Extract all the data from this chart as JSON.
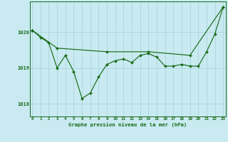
{
  "title": "Graphe pression niveau de la mer (hPa)",
  "bg_color": "#c8eaf0",
  "grid_color": "#b0d8e0",
  "line_color": "#1a6b1a",
  "series1_x": [
    0,
    1,
    2,
    3,
    4,
    5,
    6,
    7,
    8,
    9,
    10,
    11,
    12,
    13,
    14,
    15,
    16,
    17,
    18,
    19,
    20,
    21,
    22,
    23
  ],
  "series1_y": [
    1020.05,
    1019.85,
    1019.7,
    1019.0,
    1019.35,
    1018.9,
    1018.15,
    1018.3,
    1018.75,
    1019.1,
    1019.2,
    1019.25,
    1019.15,
    1019.35,
    1019.4,
    1019.3,
    1019.05,
    1019.05,
    1019.1,
    1019.05,
    1019.05,
    1019.45,
    1019.95,
    1020.7
  ],
  "series2_x": [
    0,
    3,
    9,
    14,
    19,
    23
  ],
  "series2_y": [
    1020.05,
    1019.55,
    1019.45,
    1019.45,
    1019.35,
    1020.7
  ],
  "ylim": [
    1017.65,
    1020.85
  ],
  "yticks": [
    1018,
    1019,
    1020
  ],
  "xlim": [
    -0.3,
    23.3
  ],
  "x_labels": [
    "0",
    "1",
    "2",
    "3",
    "4",
    "5",
    "6",
    "7",
    "8",
    "9",
    "10",
    "11",
    "12",
    "13",
    "14",
    "15",
    "16",
    "17",
    "18",
    "19",
    "20",
    "21",
    "22",
    "23"
  ]
}
